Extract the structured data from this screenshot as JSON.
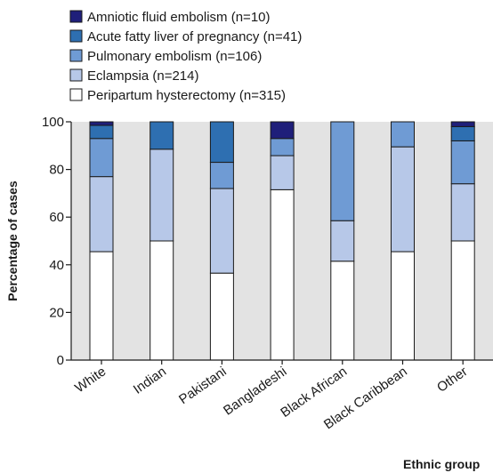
{
  "chart_data": {
    "type": "bar",
    "stacked": true,
    "xlabel": "Ethnic group",
    "ylabel": "Percentage of cases",
    "ylim": [
      0,
      100
    ],
    "yticks": [
      0,
      20,
      40,
      60,
      80,
      100
    ],
    "grid": false,
    "legend_position": "top-left",
    "categories": [
      "White",
      "Indian",
      "Pakistani",
      "Bangladeshi",
      "Black African",
      "Black Caribbean",
      "Other"
    ],
    "series": [
      {
        "name": "Peripartum hysterectomy (n=315)",
        "color": "#ffffff",
        "values": [
          45.5,
          50.0,
          36.5,
          71.5,
          41.5,
          45.5,
          50.0
        ]
      },
      {
        "name": "Eclampsia (n=214)",
        "color": "#b7c8e8",
        "values": [
          31.5,
          38.5,
          35.5,
          14.3,
          17.0,
          44.0,
          24.0
        ]
      },
      {
        "name": "Pulmonary embolism (n=106)",
        "color": "#6f9bd4",
        "values": [
          16.0,
          0.0,
          11.0,
          7.2,
          41.5,
          10.5,
          18.0
        ]
      },
      {
        "name": "Acute fatty liver of pregnancy (n=41)",
        "color": "#2e6fb1",
        "values": [
          5.5,
          11.5,
          17.0,
          0.0,
          0.0,
          0.0,
          6.0
        ]
      },
      {
        "name": "Amniotic fluid embolism (n=10)",
        "color": "#1f1f7a",
        "values": [
          1.5,
          0.0,
          0.0,
          7.0,
          0.0,
          0.0,
          2.0
        ]
      }
    ],
    "legend_order": [
      4,
      3,
      2,
      1,
      0
    ]
  }
}
